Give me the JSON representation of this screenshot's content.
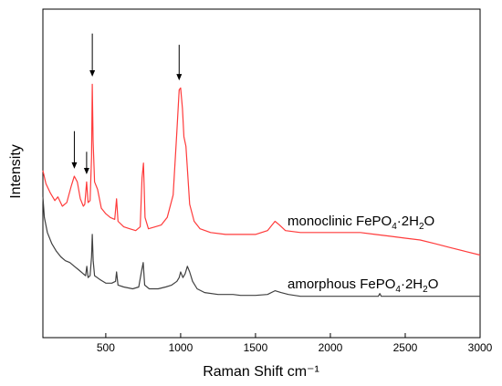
{
  "chart_data": {
    "type": "line",
    "xlabel": "Raman Shift cm⁻¹",
    "ylabel": "Intensity",
    "xlim": [
      80,
      3000
    ],
    "x_ticks": [
      500,
      1000,
      1500,
      2000,
      2500,
      3000
    ],
    "y_ticks": [],
    "series": [
      {
        "name": "monoclinic FePO4·2H2O",
        "label_prefix": "monoclinic  FePO",
        "color": "#ff3b3b",
        "points": [
          [
            80,
            8.9
          ],
          [
            100,
            8.2
          ],
          [
            130,
            7.7
          ],
          [
            160,
            7.3
          ],
          [
            180,
            7.5
          ],
          [
            210,
            7.0
          ],
          [
            240,
            7.2
          ],
          [
            270,
            8.1
          ],
          [
            290,
            8.6
          ],
          [
            310,
            8.3
          ],
          [
            330,
            7.4
          ],
          [
            350,
            7.0
          ],
          [
            360,
            7.1
          ],
          [
            372,
            8.3
          ],
          [
            382,
            7.2
          ],
          [
            395,
            7.3
          ],
          [
            405,
            9.6
          ],
          [
            410,
            13.5
          ],
          [
            415,
            10.5
          ],
          [
            425,
            8.3
          ],
          [
            445,
            7.9
          ],
          [
            470,
            6.9
          ],
          [
            500,
            6.6
          ],
          [
            530,
            6.4
          ],
          [
            560,
            6.3
          ],
          [
            572,
            7.4
          ],
          [
            582,
            6.2
          ],
          [
            620,
            5.9
          ],
          [
            660,
            5.8
          ],
          [
            700,
            5.7
          ],
          [
            730,
            5.9
          ],
          [
            742,
            8.5
          ],
          [
            752,
            9.3
          ],
          [
            762,
            6.4
          ],
          [
            785,
            5.8
          ],
          [
            830,
            5.9
          ],
          [
            870,
            6.0
          ],
          [
            910,
            6.4
          ],
          [
            950,
            7.6
          ],
          [
            975,
            11.0
          ],
          [
            990,
            13.2
          ],
          [
            1000,
            13.3
          ],
          [
            1012,
            12.2
          ],
          [
            1022,
            10.7
          ],
          [
            1035,
            10.2
          ],
          [
            1045,
            9.0
          ],
          [
            1060,
            7.1
          ],
          [
            1090,
            6.2
          ],
          [
            1130,
            5.8
          ],
          [
            1200,
            5.6
          ],
          [
            1300,
            5.5
          ],
          [
            1400,
            5.5
          ],
          [
            1500,
            5.5
          ],
          [
            1580,
            5.7
          ],
          [
            1630,
            6.2
          ],
          [
            1660,
            6.0
          ],
          [
            1700,
            5.7
          ],
          [
            1800,
            5.6
          ],
          [
            1900,
            5.6
          ],
          [
            2000,
            5.6
          ],
          [
            2100,
            5.6
          ],
          [
            2200,
            5.6
          ],
          [
            2300,
            5.5
          ],
          [
            2400,
            5.4
          ],
          [
            2500,
            5.3
          ],
          [
            2600,
            5.2
          ],
          [
            2700,
            5.0
          ],
          [
            2800,
            4.8
          ],
          [
            2900,
            4.6
          ],
          [
            3000,
            4.4
          ]
        ]
      },
      {
        "name": "amorphous FePO4·2H2O",
        "label_prefix": "amorphous FePO",
        "color": "#404040",
        "points": [
          [
            80,
            7.5
          ],
          [
            90,
            6.4
          ],
          [
            110,
            5.6
          ],
          [
            140,
            5.0
          ],
          [
            170,
            4.6
          ],
          [
            200,
            4.3
          ],
          [
            230,
            4.1
          ],
          [
            260,
            4.0
          ],
          [
            290,
            3.8
          ],
          [
            320,
            3.6
          ],
          [
            350,
            3.4
          ],
          [
            365,
            3.3
          ],
          [
            373,
            3.8
          ],
          [
            382,
            3.2
          ],
          [
            395,
            3.3
          ],
          [
            405,
            4.3
          ],
          [
            410,
            5.5
          ],
          [
            416,
            4.1
          ],
          [
            425,
            3.3
          ],
          [
            460,
            3.1
          ],
          [
            500,
            2.9
          ],
          [
            540,
            2.9
          ],
          [
            565,
            3.0
          ],
          [
            572,
            3.5
          ],
          [
            582,
            2.8
          ],
          [
            620,
            2.7
          ],
          [
            680,
            2.6
          ],
          [
            720,
            2.7
          ],
          [
            740,
            3.6
          ],
          [
            750,
            4.0
          ],
          [
            760,
            2.8
          ],
          [
            790,
            2.6
          ],
          [
            850,
            2.6
          ],
          [
            900,
            2.7
          ],
          [
            940,
            2.8
          ],
          [
            975,
            3.0
          ],
          [
            990,
            3.2
          ],
          [
            1000,
            3.5
          ],
          [
            1015,
            3.2
          ],
          [
            1030,
            3.4
          ],
          [
            1045,
            3.8
          ],
          [
            1060,
            3.5
          ],
          [
            1080,
            3.0
          ],
          [
            1110,
            2.6
          ],
          [
            1160,
            2.4
          ],
          [
            1250,
            2.3
          ],
          [
            1350,
            2.3
          ],
          [
            1400,
            2.25
          ],
          [
            1500,
            2.25
          ],
          [
            1580,
            2.3
          ],
          [
            1630,
            2.5
          ],
          [
            1670,
            2.4
          ],
          [
            1720,
            2.3
          ],
          [
            1800,
            2.2
          ],
          [
            1900,
            2.2
          ],
          [
            2000,
            2.2
          ],
          [
            2200,
            2.2
          ],
          [
            2320,
            2.2
          ],
          [
            2330,
            2.35
          ],
          [
            2340,
            2.2
          ],
          [
            2500,
            2.2
          ],
          [
            2700,
            2.2
          ],
          [
            3000,
            2.2
          ]
        ]
      }
    ],
    "annotations": [
      {
        "type": "arrow",
        "x": 410,
        "from": 16.2,
        "to": 13.9
      },
      {
        "type": "arrow",
        "x": 990,
        "from": 15.6,
        "to": 13.7
      },
      {
        "type": "arrow",
        "x": 290,
        "from": 11.0,
        "to": 9.0
      },
      {
        "type": "arrow",
        "x": 372,
        "from": 9.9,
        "to": 8.7
      }
    ],
    "ylim": [
      0,
      17.5
    ],
    "grid": false,
    "legend": "inline labels to the right of each curve"
  }
}
